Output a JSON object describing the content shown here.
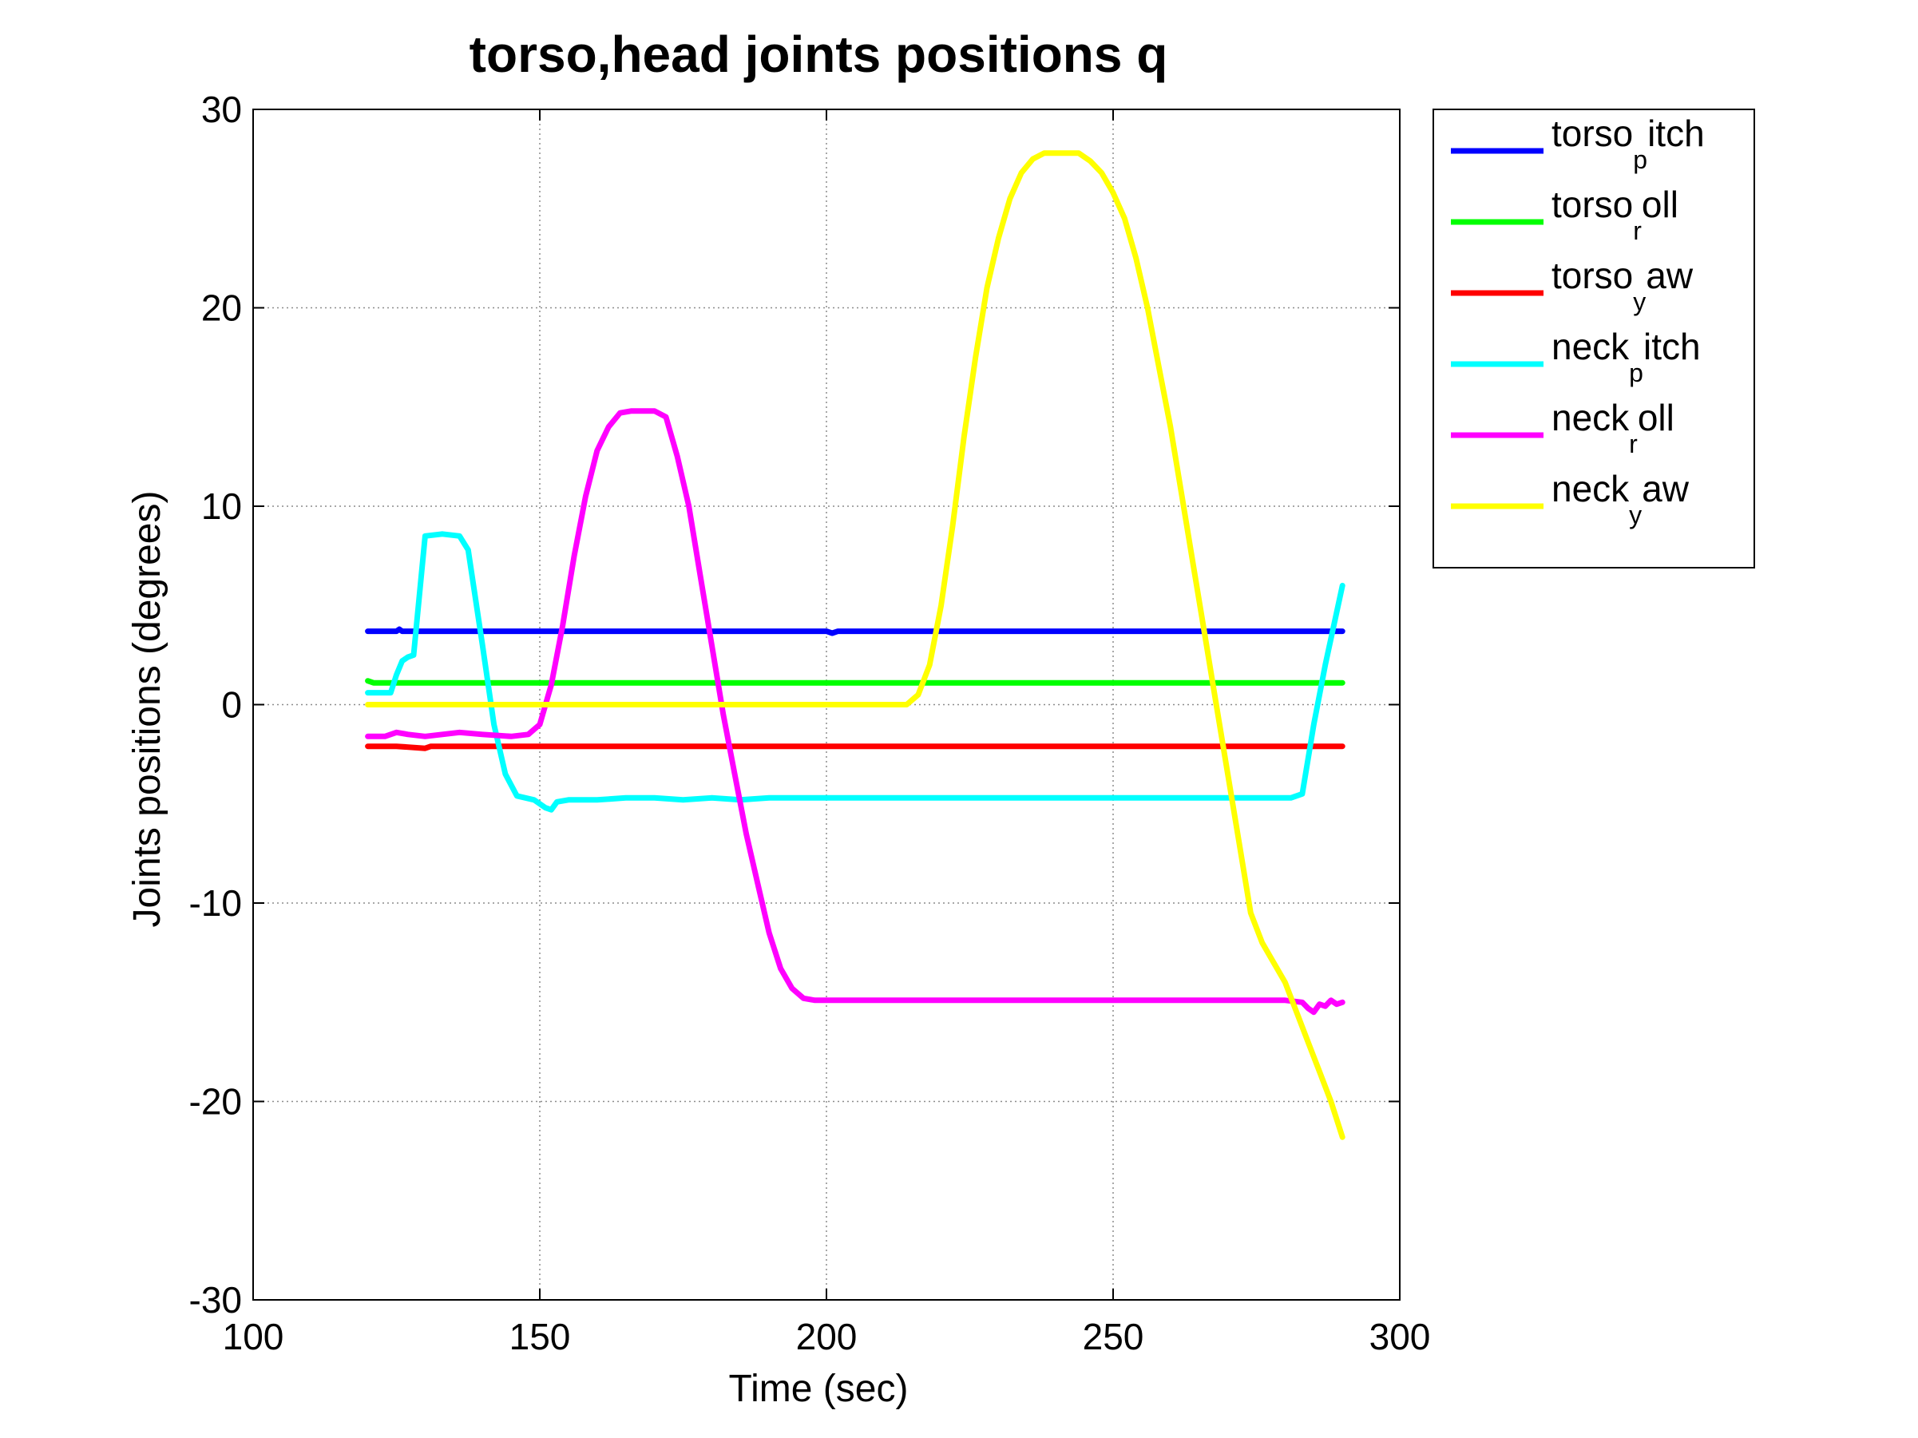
{
  "chart_data": {
    "type": "line",
    "title": "torso,head joints positions q",
    "xlabel": "Time (sec)",
    "ylabel": "Joints positions (degrees)",
    "xlim": [
      100,
      300
    ],
    "ylim": [
      -30,
      30
    ],
    "xticks": [
      100,
      150,
      200,
      250,
      300
    ],
    "yticks": [
      -30,
      -20,
      -10,
      0,
      10,
      20,
      30
    ],
    "xtick_labels": [
      "100",
      "150",
      "200",
      "250",
      "300"
    ],
    "ytick_labels": [
      "-30",
      "-20",
      "-10",
      "0",
      "10",
      "20",
      "30"
    ],
    "grid": true,
    "legend_position": "outside-top-right",
    "series": [
      {
        "name_main": "torso",
        "name_sub": "p",
        "name_tail": "itch",
        "color": "#0000ff",
        "points": [
          [
            120,
            3.7
          ],
          [
            125,
            3.7
          ],
          [
            125.5,
            3.8
          ],
          [
            126,
            3.7
          ],
          [
            200,
            3.7
          ],
          [
            201,
            3.6
          ],
          [
            202,
            3.7
          ],
          [
            290,
            3.7
          ]
        ]
      },
      {
        "name_main": "torso",
        "name_sub": "r",
        "name_tail": "oll",
        "color": "#00ff00",
        "points": [
          [
            120,
            1.2
          ],
          [
            121,
            1.1
          ],
          [
            290,
            1.1
          ]
        ]
      },
      {
        "name_main": "torso",
        "name_sub": "y",
        "name_tail": "aw",
        "color": "#ff0000",
        "points": [
          [
            120,
            -2.1
          ],
          [
            125,
            -2.1
          ],
          [
            130,
            -2.2
          ],
          [
            131,
            -2.1
          ],
          [
            290,
            -2.1
          ]
        ]
      },
      {
        "name_main": "neck",
        "name_sub": "p",
        "name_tail": "itch",
        "color": "#00ffff",
        "points": [
          [
            120,
            0.6
          ],
          [
            122,
            0.6
          ],
          [
            124,
            0.6
          ],
          [
            125,
            1.5
          ],
          [
            126,
            2.2
          ],
          [
            127,
            2.4
          ],
          [
            128,
            2.5
          ],
          [
            129,
            5.5
          ],
          [
            130,
            8.5
          ],
          [
            133,
            8.6
          ],
          [
            136,
            8.5
          ],
          [
            137.5,
            7.8
          ],
          [
            140,
            3
          ],
          [
            142,
            -1
          ],
          [
            144,
            -3.5
          ],
          [
            146,
            -4.6
          ],
          [
            149,
            -4.8
          ],
          [
            151,
            -5.2
          ],
          [
            152,
            -5.3
          ],
          [
            153,
            -4.9
          ],
          [
            155,
            -4.8
          ],
          [
            160,
            -4.8
          ],
          [
            165,
            -4.7
          ],
          [
            170,
            -4.7
          ],
          [
            175,
            -4.8
          ],
          [
            180,
            -4.7
          ],
          [
            185,
            -4.8
          ],
          [
            190,
            -4.7
          ],
          [
            200,
            -4.7
          ],
          [
            220,
            -4.7
          ],
          [
            250,
            -4.7
          ],
          [
            281,
            -4.7
          ],
          [
            283,
            -4.5
          ],
          [
            285,
            -1
          ],
          [
            287,
            2
          ],
          [
            290,
            6
          ]
        ]
      },
      {
        "name_main": "neck",
        "name_sub": "r",
        "name_tail": "oll",
        "color": "#ff00ff",
        "points": [
          [
            120,
            -1.6
          ],
          [
            123,
            -1.6
          ],
          [
            125,
            -1.4
          ],
          [
            127,
            -1.5
          ],
          [
            130,
            -1.6
          ],
          [
            133,
            -1.5
          ],
          [
            136,
            -1.4
          ],
          [
            140,
            -1.5
          ],
          [
            145,
            -1.6
          ],
          [
            148,
            -1.5
          ],
          [
            150,
            -1
          ],
          [
            152,
            1
          ],
          [
            154,
            4
          ],
          [
            156,
            7.5
          ],
          [
            158,
            10.5
          ],
          [
            160,
            12.8
          ],
          [
            162,
            14
          ],
          [
            164,
            14.7
          ],
          [
            166,
            14.8
          ],
          [
            170,
            14.8
          ],
          [
            172,
            14.5
          ],
          [
            174,
            12.5
          ],
          [
            176,
            10
          ],
          [
            178,
            6.5
          ],
          [
            180,
            3
          ],
          [
            182,
            -0.5
          ],
          [
            184,
            -3.5
          ],
          [
            186,
            -6.5
          ],
          [
            188,
            -9
          ],
          [
            190,
            -11.5
          ],
          [
            192,
            -13.3
          ],
          [
            194,
            -14.3
          ],
          [
            196,
            -14.8
          ],
          [
            198,
            -14.9
          ],
          [
            210,
            -14.9
          ],
          [
            230,
            -14.9
          ],
          [
            250,
            -14.9
          ],
          [
            280,
            -14.9
          ],
          [
            283,
            -15
          ],
          [
            284,
            -15.3
          ],
          [
            285,
            -15.5
          ],
          [
            286,
            -15.1
          ],
          [
            287,
            -15.2
          ],
          [
            288,
            -14.9
          ],
          [
            289,
            -15.1
          ],
          [
            290,
            -15
          ]
        ]
      },
      {
        "name_main": "neck",
        "name_sub": "y",
        "name_tail": "aw",
        "color": "#ffff00",
        "points": [
          [
            120,
            0
          ],
          [
            150,
            0
          ],
          [
            180,
            0
          ],
          [
            200,
            0
          ],
          [
            214,
            0
          ],
          [
            216,
            0.5
          ],
          [
            218,
            2
          ],
          [
            220,
            5
          ],
          [
            222,
            9
          ],
          [
            224,
            13.5
          ],
          [
            226,
            17.5
          ],
          [
            228,
            21
          ],
          [
            230,
            23.5
          ],
          [
            232,
            25.5
          ],
          [
            234,
            26.8
          ],
          [
            236,
            27.5
          ],
          [
            238,
            27.8
          ],
          [
            244,
            27.8
          ],
          [
            246,
            27.4
          ],
          [
            248,
            26.8
          ],
          [
            250,
            25.8
          ],
          [
            252,
            24.5
          ],
          [
            254,
            22.5
          ],
          [
            256,
            20
          ],
          [
            258,
            17
          ],
          [
            260,
            14
          ],
          [
            262,
            10.5
          ],
          [
            264,
            7
          ],
          [
            266,
            3.5
          ],
          [
            268,
            0
          ],
          [
            270,
            -3.5
          ],
          [
            272,
            -7
          ],
          [
            274,
            -10.5
          ],
          [
            276,
            -12
          ],
          [
            278,
            -13
          ],
          [
            280,
            -14
          ],
          [
            282,
            -15.5
          ],
          [
            284,
            -17
          ],
          [
            286,
            -18.5
          ],
          [
            288,
            -20
          ],
          [
            290,
            -21.8
          ]
        ]
      }
    ]
  }
}
